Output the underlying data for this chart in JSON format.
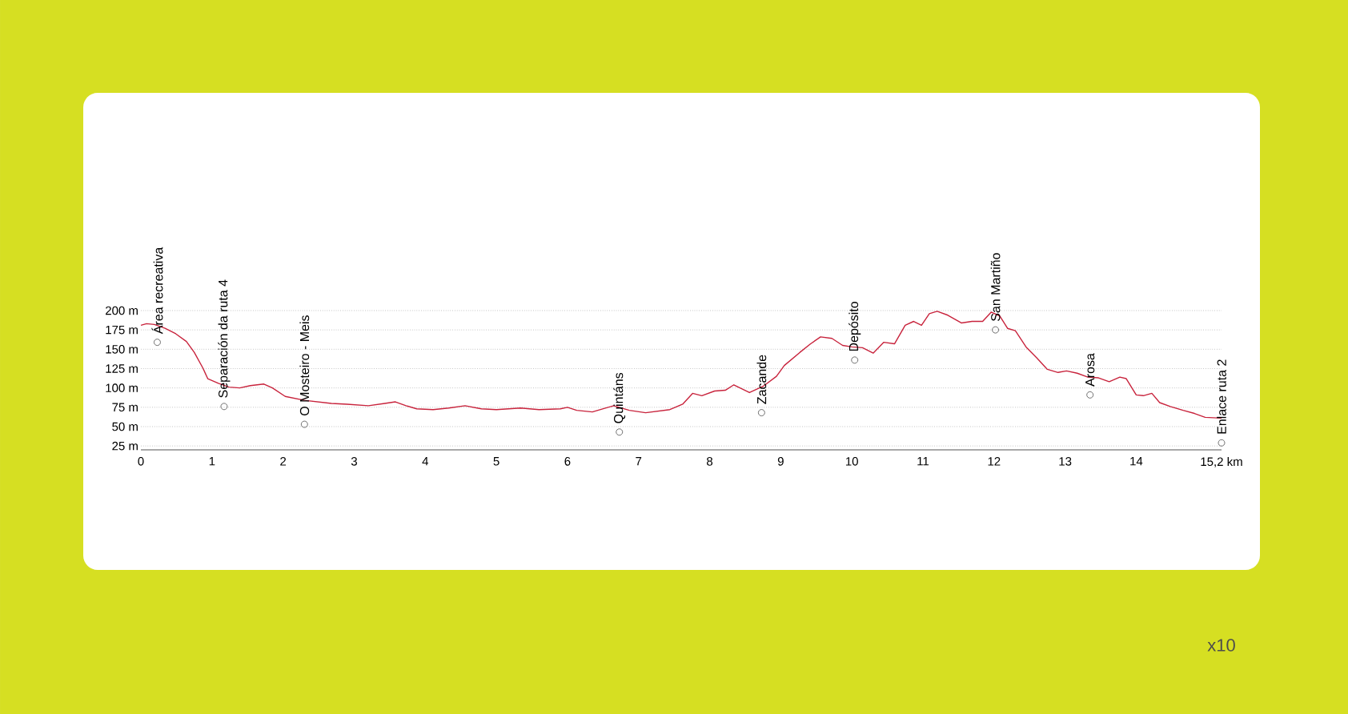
{
  "chart_data": {
    "type": "line",
    "x": [
      0,
      0.08,
      0.19,
      0.34,
      0.49,
      0.64,
      0.75,
      0.87,
      0.94,
      1.09,
      1.24,
      1.39,
      1.54,
      1.73,
      1.85,
      2.03,
      2.3,
      2.68,
      2.9,
      3.2,
      3.43,
      3.58,
      3.73,
      3.88,
      4.11,
      4.33,
      4.56,
      4.79,
      5.0,
      5.34,
      5.6,
      5.9,
      6.0,
      6.13,
      6.35,
      6.65,
      6.87,
      7.1,
      7.44,
      7.62,
      7.76,
      7.89,
      8.07,
      8.22,
      8.34,
      8.56,
      8.75,
      8.94,
      9.05,
      9.27,
      9.42,
      9.56,
      9.72,
      9.87,
      10.0,
      10.15,
      10.3,
      10.45,
      10.6,
      10.75,
      10.87,
      10.98,
      11.09,
      11.2,
      11.35,
      11.54,
      11.69,
      11.84,
      11.96,
      12.08,
      12.19,
      12.3,
      12.45,
      12.6,
      12.75,
      12.9,
      13.02,
      13.17,
      13.32,
      13.47,
      13.62,
      13.77,
      13.86,
      14.0,
      14.1,
      14.22,
      14.33,
      14.48,
      14.66,
      14.82,
      14.97,
      15.2
    ],
    "values": [
      181,
      183,
      182,
      177,
      170,
      160,
      146,
      126,
      112,
      106,
      101,
      100,
      103,
      105,
      100,
      89,
      84,
      80,
      79,
      77,
      80,
      82,
      77,
      73,
      72,
      74,
      77,
      73,
      72,
      74,
      72,
      73,
      75,
      71,
      69,
      77,
      71,
      68,
      72,
      79,
      93,
      90,
      96,
      97,
      104,
      94,
      102,
      115,
      129,
      146,
      157,
      166,
      164,
      155,
      153,
      152,
      145,
      159,
      157,
      181,
      186,
      181,
      196,
      199,
      194,
      184,
      186,
      186,
      198,
      193,
      177,
      174,
      153,
      139,
      124,
      120,
      122,
      119,
      114,
      113,
      108,
      114,
      112,
      91,
      90,
      93,
      81,
      76,
      71,
      67,
      62,
      61
    ],
    "color": "#c8233c",
    "xlim": [
      0,
      15.2
    ],
    "ylim": [
      20,
      200
    ],
    "xticks": [
      0,
      1,
      2,
      3,
      4,
      5,
      6,
      7,
      8,
      9,
      10,
      11,
      12,
      13,
      14,
      {
        "value": 15.2,
        "label": "15,2 km"
      }
    ],
    "yticks": [
      {
        "value": 25,
        "label": "25 m"
      },
      {
        "value": 50,
        "label": "50 m"
      },
      {
        "value": 75,
        "label": "75 m"
      },
      {
        "value": 100,
        "label": "100 m"
      },
      {
        "value": 125,
        "label": "125 m"
      },
      {
        "value": 150,
        "label": "150 m"
      },
      {
        "value": 175,
        "label": "175 m"
      },
      {
        "value": 200,
        "label": "200 m"
      }
    ],
    "grid": "y",
    "annotations": [
      {
        "text": "Área recreativa",
        "x": 0.23,
        "y": 159
      },
      {
        "text": "Separación da ruta 4",
        "x": 1.17,
        "y": 76
      },
      {
        "text": "O Mosteiro - Meis",
        "x": 2.3,
        "y": 53
      },
      {
        "text": "Quintáns",
        "x": 6.73,
        "y": 43
      },
      {
        "text": "Zacande",
        "x": 8.73,
        "y": 68
      },
      {
        "text": "Depósito",
        "x": 10.04,
        "y": 136
      },
      {
        "text": "San Martiño",
        "x": 12.02,
        "y": 175
      },
      {
        "text": "Arosa",
        "x": 13.35,
        "y": 91
      },
      {
        "text": "Enlace ruta 2",
        "x": 15.2,
        "y": 29
      },
      "x10"
    ]
  }
}
